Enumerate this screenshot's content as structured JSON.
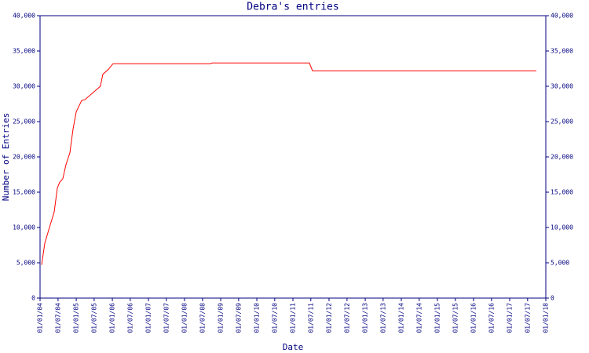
{
  "chart_data": {
    "type": "line",
    "title": "Debra's entries",
    "x_label": "Date",
    "y_label": "Number of Entries",
    "xlim": [
      "2004-01-01",
      "2018-01-01"
    ],
    "xticks": [
      {
        "value": "2004-01-01",
        "label": "01/01/04"
      },
      {
        "value": "2004-07-01",
        "label": "01/07/04"
      },
      {
        "value": "2005-01-01",
        "label": "01/01/05"
      },
      {
        "value": "2005-07-01",
        "label": "01/07/05"
      },
      {
        "value": "2006-01-01",
        "label": "01/01/06"
      },
      {
        "value": "2006-07-01",
        "label": "01/07/06"
      },
      {
        "value": "2007-01-01",
        "label": "01/01/07"
      },
      {
        "value": "2007-07-01",
        "label": "01/07/07"
      },
      {
        "value": "2008-01-01",
        "label": "01/01/08"
      },
      {
        "value": "2008-07-01",
        "label": "01/07/08"
      },
      {
        "value": "2009-01-01",
        "label": "01/01/09"
      },
      {
        "value": "2009-07-01",
        "label": "01/07/09"
      },
      {
        "value": "2010-01-01",
        "label": "01/01/10"
      },
      {
        "value": "2010-07-01",
        "label": "01/07/10"
      },
      {
        "value": "2011-01-01",
        "label": "01/01/11"
      },
      {
        "value": "2011-07-01",
        "label": "01/07/11"
      },
      {
        "value": "2012-01-01",
        "label": "01/01/12"
      },
      {
        "value": "2012-07-01",
        "label": "01/07/12"
      },
      {
        "value": "2013-01-01",
        "label": "01/01/13"
      },
      {
        "value": "2013-07-01",
        "label": "01/07/13"
      },
      {
        "value": "2014-01-01",
        "label": "01/01/14"
      },
      {
        "value": "2014-07-01",
        "label": "01/07/14"
      },
      {
        "value": "2015-01-01",
        "label": "01/01/15"
      },
      {
        "value": "2015-07-01",
        "label": "01/07/15"
      },
      {
        "value": "2016-01-01",
        "label": "01/01/16"
      },
      {
        "value": "2016-07-01",
        "label": "01/07/16"
      },
      {
        "value": "2017-01-01",
        "label": "01/01/17"
      },
      {
        "value": "2017-07-01",
        "label": "01/07/17"
      },
      {
        "value": "2018-01-01",
        "label": "01/01/18"
      }
    ],
    "ylim": [
      0,
      40000
    ],
    "yticks": [
      0,
      {
        "value": 5000,
        "label": "5,000"
      },
      {
        "value": 10000,
        "label": "10,000"
      },
      {
        "value": 15000,
        "label": "15,000"
      },
      {
        "value": 20000,
        "label": "20,000"
      },
      {
        "value": 25000,
        "label": "25,000"
      },
      {
        "value": 30000,
        "label": "30,000"
      },
      {
        "value": 35000,
        "label": "35,000"
      },
      {
        "value": 40000,
        "label": "40,000"
      }
    ],
    "x": [
      "2004-01-17",
      "2004-02-18",
      "2004-04-05",
      "2004-05-23",
      "2004-06-24",
      "2004-07-17",
      "2004-08-18",
      "2004-09-19",
      "2004-10-29",
      "2004-11-29",
      "2005-01-01",
      "2005-02-25",
      "2005-03-29",
      "2005-09-02",
      "2005-09-27",
      "2005-11-22",
      "2006-01-08",
      "2008-09-19",
      "2008-10-05",
      "2011-06-16",
      "2011-07-18",
      "2017-09-27"
    ],
    "series": [
      {
        "name": "Entries",
        "color": "#ff0000",
        "values": [
          4700,
          7800,
          10000,
          12200,
          15600,
          16400,
          16900,
          18900,
          20600,
          23900,
          26400,
          28000,
          28100,
          30000,
          31700,
          32400,
          33200,
          33200,
          33300,
          33300,
          32200,
          32200
        ]
      }
    ]
  }
}
